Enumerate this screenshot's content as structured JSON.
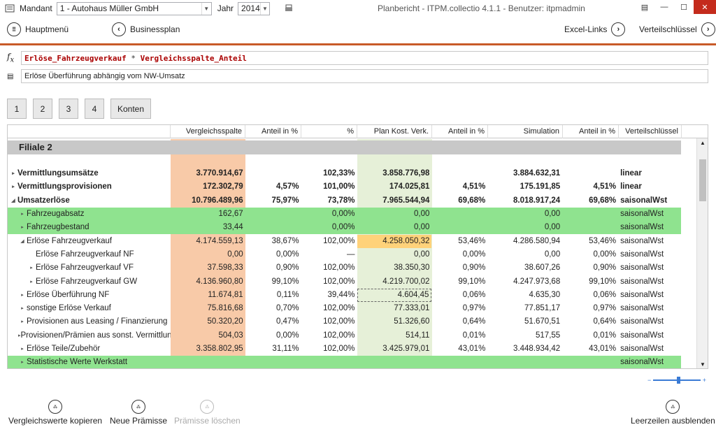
{
  "titlebar": {
    "mandant_label": "Mandant",
    "mandant_value": "1 - Autohaus Müller GmbH",
    "jahr_label": "Jahr",
    "jahr_value": "2014",
    "window_title": "Planbericht - ITPM.collectio 4.1.1 - Benutzer: itpmadmin"
  },
  "nav": {
    "hauptmenu": "Hauptmenü",
    "businessplan": "Businessplan",
    "excel_links": "Excel-Links",
    "verteilschluessel": "Verteilschlüssel"
  },
  "formula": {
    "part1": "Erlöse_Fahrzeugverkauf",
    "operator": " * ",
    "part2": "Vergleichsspalte_Anteil"
  },
  "description": "Erlöse Überführung abhängig vom NW-Umsatz",
  "tabs": [
    "1",
    "2",
    "3",
    "4",
    "Konten"
  ],
  "grid": {
    "headers": [
      "",
      "Vergleichsspalte",
      "Anteil in %",
      "%",
      "Plan Kost. Verk.",
      "Anteil in %",
      "Simulation",
      "Anteil in %",
      "Verteilschlüssel"
    ],
    "filiale": "Filiale 2",
    "rows": [
      {
        "name": "Vermittlungsumsätze",
        "indent": 0,
        "tri": "▸",
        "bold": true,
        "green": false,
        "vals": [
          "3.770.914,67",
          "",
          "102,33%",
          "3.858.776,98",
          "",
          "3.884.632,31",
          "",
          "linear"
        ]
      },
      {
        "name": "Vermittlungsprovisionen",
        "indent": 0,
        "tri": "▸",
        "bold": true,
        "green": false,
        "vals": [
          "172.302,79",
          "4,57%",
          "101,00%",
          "174.025,81",
          "4,51%",
          "175.191,85",
          "4,51%",
          "linear"
        ]
      },
      {
        "name": "Umsatzerlöse",
        "indent": 0,
        "tri": "◢",
        "bold": true,
        "green": false,
        "vals": [
          "10.796.489,96",
          "75,97%",
          "73,78%",
          "7.965.544,94",
          "69,68%",
          "8.018.917,24",
          "69,68%",
          "saisonalWst"
        ]
      },
      {
        "name": "Fahrzeugabsatz",
        "indent": 1,
        "tri": "▸",
        "bold": false,
        "green": true,
        "vals": [
          "162,67",
          "",
          "0,00%",
          "0,00",
          "",
          "0,00",
          "",
          "saisonalWst"
        ]
      },
      {
        "name": "Fahrzeugbestand",
        "indent": 1,
        "tri": "▸",
        "bold": false,
        "green": true,
        "vals": [
          "33,44",
          "",
          "0,00%",
          "0,00",
          "",
          "0,00",
          "",
          "saisonalWst"
        ]
      },
      {
        "name": "Erlöse Fahrzeugverkauf",
        "indent": 1,
        "tri": "◢",
        "bold": false,
        "green": false,
        "vals": [
          "4.174.559,13",
          "38,67%",
          "102,00%",
          "4.258.050,32",
          "53,46%",
          "4.286.580,94",
          "53,46%",
          "saisonalWst"
        ]
      },
      {
        "name": "Erlöse Fahrzeugverkauf NF",
        "indent": 2,
        "tri": "",
        "bold": false,
        "green": false,
        "vals": [
          "0,00",
          "0,00%",
          "—",
          "0,00",
          "0,00%",
          "0,00",
          "0,00%",
          "saisonalWst"
        ]
      },
      {
        "name": "Erlöse Fahrzeugverkauf VF",
        "indent": 2,
        "tri": "▸",
        "bold": false,
        "green": false,
        "vals": [
          "37.598,33",
          "0,90%",
          "102,00%",
          "38.350,30",
          "0,90%",
          "38.607,26",
          "0,90%",
          "saisonalWst"
        ]
      },
      {
        "name": "Erlöse Fahrzeugverkauf GW",
        "indent": 2,
        "tri": "▸",
        "bold": false,
        "green": false,
        "vals": [
          "4.136.960,80",
          "99,10%",
          "102,00%",
          "4.219.700,02",
          "99,10%",
          "4.247.973,68",
          "99,10%",
          "saisonalWst"
        ]
      },
      {
        "name": "Erlöse Überführung NF",
        "indent": 1,
        "tri": "▸",
        "bold": false,
        "green": false,
        "vals": [
          "11.674,81",
          "0,11%",
          "39,44%",
          "4.604,45",
          "0,06%",
          "4.635,30",
          "0,06%",
          "saisonalWst"
        ]
      },
      {
        "name": "sonstige Erlöse Verkauf",
        "indent": 1,
        "tri": "▸",
        "bold": false,
        "green": false,
        "vals": [
          "75.816,68",
          "0,70%",
          "102,00%",
          "77.333,01",
          "0,97%",
          "77.851,17",
          "0,97%",
          "saisonalWst"
        ]
      },
      {
        "name": "Provisionen aus Leasing / Finanzierung",
        "indent": 1,
        "tri": "▸",
        "bold": false,
        "green": false,
        "vals": [
          "50.320,20",
          "0,47%",
          "102,00%",
          "51.326,60",
          "0,64%",
          "51.670,51",
          "0,64%",
          "saisonalWst"
        ]
      },
      {
        "name": "Provisionen/Prämien aus sonst. Vermittlung",
        "indent": 1,
        "tri": "▸",
        "bold": false,
        "green": false,
        "vals": [
          "504,03",
          "0,00%",
          "102,00%",
          "514,11",
          "0,01%",
          "517,55",
          "0,01%",
          "saisonalWst"
        ]
      },
      {
        "name": "Erlöse Teile/Zubehör",
        "indent": 1,
        "tri": "▸",
        "bold": false,
        "green": false,
        "vals": [
          "3.358.802,95",
          "31,11%",
          "102,00%",
          "3.425.979,01",
          "43,01%",
          "3.448.934,42",
          "43,01%",
          "saisonalWst"
        ]
      },
      {
        "name": "Statistische Werte Werkstatt",
        "indent": 1,
        "tri": "▸",
        "bold": false,
        "green": true,
        "vals": [
          "",
          "",
          "",
          "",
          "",
          "",
          "",
          "saisonalWst"
        ]
      }
    ]
  },
  "bottom": {
    "copy": "Vergleichswerte kopieren",
    "neue": "Neue Prämisse",
    "loeschen": "Prämisse löschen",
    "leer": "Leerzeilen ausblenden"
  },
  "colors": {
    "accent": "#c85a28",
    "green_row": "#8fe38f",
    "vergleich_bg": "#f8caa8",
    "plan_bg": "#e6f0d8",
    "highlight": "#ffd27a"
  }
}
